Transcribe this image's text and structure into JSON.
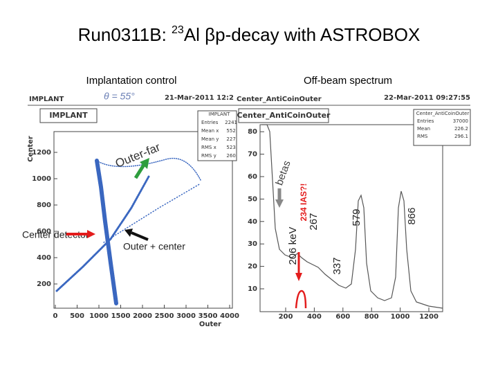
{
  "title": {
    "lead": "Run0311B: ",
    "mass": "23",
    "rest": "Al βp-decay with ASTROBOX"
  },
  "left": {
    "heading": "Implantation control",
    "header_left": "IMPLANT",
    "header_date": "21-Mar-2011 12:2",
    "handwritten": "θ = 55°",
    "plot_title": "IMPLANT",
    "stats": {
      "name": "IMPLANT",
      "rows": [
        [
          "Entries",
          "2241"
        ],
        [
          "Mean x",
          "552."
        ],
        [
          "Mean y",
          "227."
        ],
        [
          "RMS x",
          "523."
        ],
        [
          "RMS y",
          "260."
        ]
      ]
    },
    "y_label": "Center",
    "x_label": "Outer",
    "xticks": [
      "0",
      "500",
      "1000",
      "1500",
      "2000",
      "2500",
      "3000",
      "3500",
      "4000"
    ],
    "yticks": [
      "200",
      "400",
      "600",
      "800",
      "1000",
      "1200"
    ],
    "annotations": {
      "outer_far": "Outer-far",
      "center_detector": "Center detector",
      "outer_center": "Outer + center"
    }
  },
  "right": {
    "heading": "Off-beam spectrum",
    "header_left": "Center_AntiCoinOuter",
    "header_date": "22-Mar-2011 09:27:55",
    "plot_title": "Center_AntiCoinOuter",
    "stats": {
      "name": "Center_AntiCoinOuter",
      "rows": [
        [
          "Entries",
          "37000"
        ],
        [
          "Mean",
          "226.2"
        ],
        [
          "RMS",
          "296.1"
        ]
      ]
    },
    "xticks": [
      "200",
      "400",
      "600",
      "800",
      "1000",
      "1200"
    ],
    "yticks": [
      "10",
      "20",
      "30",
      "40",
      "50",
      "60",
      "70",
      "80"
    ],
    "annotations": {
      "betas": "betas",
      "kev206": "206 keV",
      "ias": "234 IAS?!",
      "p267": "267",
      "p337": "337",
      "p579": "579",
      "p866": "866"
    }
  }
}
